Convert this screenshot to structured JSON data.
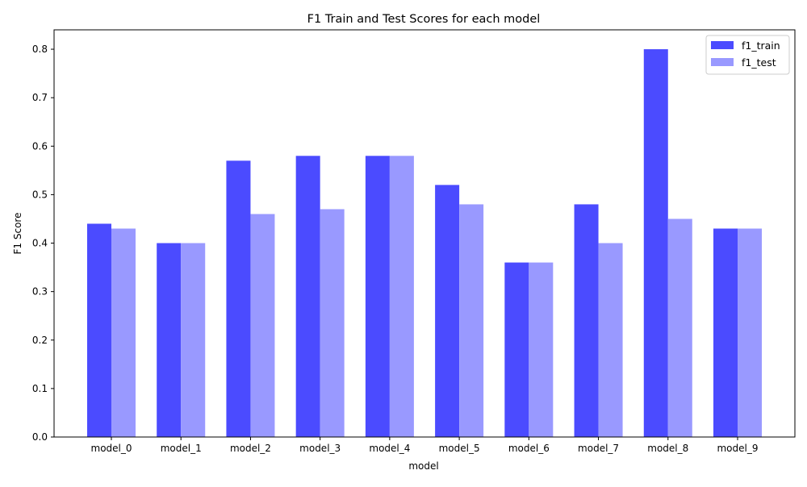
{
  "chart_data": {
    "type": "bar",
    "title": "F1 Train and Test Scores for each model",
    "xlabel": "model",
    "ylabel": "F1 Score",
    "categories": [
      "model_0",
      "model_1",
      "model_2",
      "model_3",
      "model_4",
      "model_5",
      "model_6",
      "model_7",
      "model_8",
      "model_9"
    ],
    "series": [
      {
        "name": "f1_train",
        "color": "#4b4bff",
        "values": [
          0.44,
          0.4,
          0.57,
          0.58,
          0.58,
          0.52,
          0.36,
          0.48,
          0.8,
          0.43
        ]
      },
      {
        "name": "f1_test",
        "color": "#9999ff",
        "values": [
          0.43,
          0.4,
          0.46,
          0.47,
          0.58,
          0.48,
          0.36,
          0.4,
          0.45,
          0.43
        ]
      }
    ],
    "ylim": [
      0,
      0.84
    ],
    "yticks": [
      "0.0",
      "0.1",
      "0.2",
      "0.3",
      "0.4",
      "0.5",
      "0.6",
      "0.7",
      "0.8"
    ],
    "grid": false,
    "legend_position": "top-right"
  }
}
